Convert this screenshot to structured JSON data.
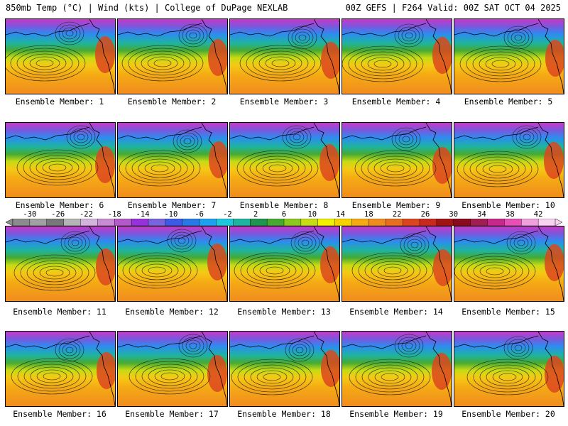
{
  "header": {
    "left": "850mb Temp (°C) | Wind (kts) | College of DuPage NEXLAB",
    "right": "00Z GEFS | F264 Valid: 00Z SAT OCT 04 2025"
  },
  "panel_label_prefix": "Ensemble Member: ",
  "members": [
    "1",
    "2",
    "3",
    "4",
    "5",
    "6",
    "7",
    "8",
    "9",
    "10",
    "11",
    "12",
    "13",
    "14",
    "15",
    "16",
    "17",
    "18",
    "19",
    "20"
  ],
  "colorbar": {
    "ticks": [
      "-30",
      "-26",
      "-22",
      "-18",
      "-14",
      "-10",
      "-6",
      "-2",
      "2",
      "6",
      "10",
      "14",
      "18",
      "22",
      "26",
      "30",
      "34",
      "38",
      "42"
    ],
    "colors": [
      "#8c8c8c",
      "#a0a0a0",
      "#787878",
      "#b4b4b4",
      "#d2b4dc",
      "#c88cd2",
      "#b45ac8",
      "#9632dc",
      "#7864dc",
      "#3c5ae6",
      "#2878e6",
      "#1ea0f0",
      "#1ec8dc",
      "#1eb4a0",
      "#1e9650",
      "#46aa32",
      "#8cc81e",
      "#c8dc14",
      "#f0f000",
      "#f5d200",
      "#f5aa14",
      "#f08c1e",
      "#e66e1e",
      "#dc461e",
      "#c8281e",
      "#a01414",
      "#8c0a1e",
      "#a01e50",
      "#c8288c",
      "#e650b4",
      "#f0a0dc",
      "#f8d2f0"
    ]
  }
}
